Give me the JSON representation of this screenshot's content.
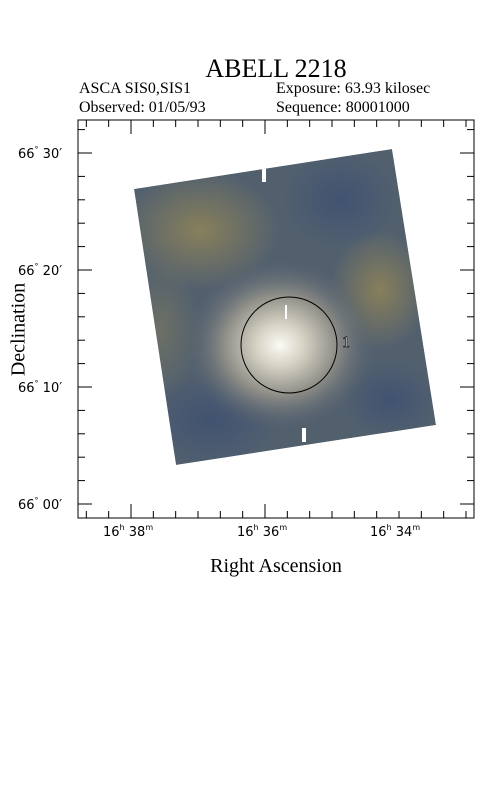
{
  "header": {
    "title": "ABELL 2218",
    "instrument": "ASCA SIS0,SIS1",
    "observed": "Observed: 01/05/93",
    "exposure": "Exposure: 63.93 kilosec",
    "sequence": "Sequence: 80001000"
  },
  "axes": {
    "xlabel": "Right Ascension",
    "ylabel": "Declination",
    "x_ticks": [
      {
        "h": "16",
        "m": "38"
      },
      {
        "h": "16",
        "m": "36"
      },
      {
        "h": "16",
        "m": "34"
      }
    ],
    "y_ticks": [
      {
        "deg": "66",
        "min": "30"
      },
      {
        "deg": "66",
        "min": "20"
      },
      {
        "deg": "66",
        "min": "10"
      },
      {
        "deg": "66",
        "min": "00"
      }
    ]
  },
  "annotation": {
    "source_label": "1"
  },
  "colors": {
    "frame": "#000000",
    "image_base": "#4a5a6a",
    "image_warm": "#8a7d55",
    "core": "#f4f2ea",
    "circle": "#000000"
  }
}
